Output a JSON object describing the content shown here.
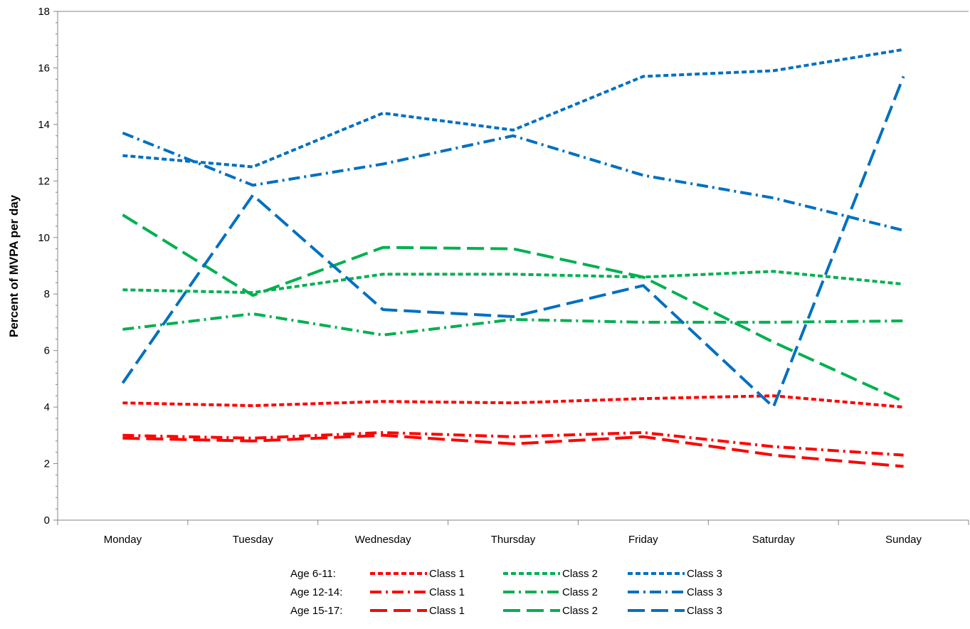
{
  "chart_data": {
    "type": "line",
    "title": "",
    "xlabel": "",
    "ylabel": "Percent of MVPA per day",
    "ylim": [
      0,
      18
    ],
    "yticks": [
      0,
      2,
      4,
      6,
      8,
      10,
      12,
      14,
      16,
      18
    ],
    "grid": false,
    "legend_position": "bottom",
    "categories": [
      "Monday",
      "Tuesday",
      "Wednesday",
      "Thursday",
      "Friday",
      "Saturday",
      "Sunday"
    ],
    "legend_groups": [
      "Age 6-11:",
      "Age 12-14:",
      "Age 15-17:"
    ],
    "series": [
      {
        "name": "Class 1",
        "group": "Age 6-11:",
        "color": "#ff0000",
        "dash": "short-dash",
        "values": [
          4.15,
          4.05,
          4.2,
          4.15,
          4.3,
          4.4,
          4.0
        ]
      },
      {
        "name": "Class 2",
        "group": "Age 6-11:",
        "color": "#00b050",
        "dash": "short-dash",
        "values": [
          8.15,
          8.05,
          8.7,
          8.7,
          8.6,
          8.8,
          8.35
        ]
      },
      {
        "name": "Class 3",
        "group": "Age 6-11:",
        "color": "#0070c0",
        "dash": "short-dash",
        "values": [
          12.9,
          12.5,
          14.4,
          13.8,
          15.7,
          15.9,
          16.65
        ]
      },
      {
        "name": "Class 1",
        "group": "Age 12-14:",
        "color": "#ff0000",
        "dash": "dash-dot",
        "values": [
          3.0,
          2.9,
          3.1,
          2.95,
          3.1,
          2.6,
          2.3
        ]
      },
      {
        "name": "Class 2",
        "group": "Age 12-14:",
        "color": "#00b050",
        "dash": "dash-dot",
        "values": [
          6.75,
          7.3,
          6.55,
          7.1,
          7.0,
          7.0,
          7.05
        ]
      },
      {
        "name": "Class 3",
        "group": "Age 12-14:",
        "color": "#0070c0",
        "dash": "dash-dot",
        "values": [
          13.7,
          11.85,
          12.6,
          13.6,
          12.2,
          11.4,
          10.25
        ]
      },
      {
        "name": "Class 1",
        "group": "Age 15-17:",
        "color": "#ff0000",
        "dash": "long-dash",
        "values": [
          2.9,
          2.8,
          3.0,
          2.7,
          2.95,
          2.3,
          1.9
        ]
      },
      {
        "name": "Class 2",
        "group": "Age 15-17:",
        "color": "#00b050",
        "dash": "long-dash",
        "values": [
          10.8,
          7.95,
          9.65,
          9.6,
          8.6,
          6.3,
          4.2
        ]
      },
      {
        "name": "Class 3",
        "group": "Age 15-17:",
        "color": "#0070c0",
        "dash": "long-dash",
        "values": [
          4.85,
          11.5,
          7.45,
          7.2,
          8.3,
          4.0,
          15.7
        ]
      }
    ]
  }
}
